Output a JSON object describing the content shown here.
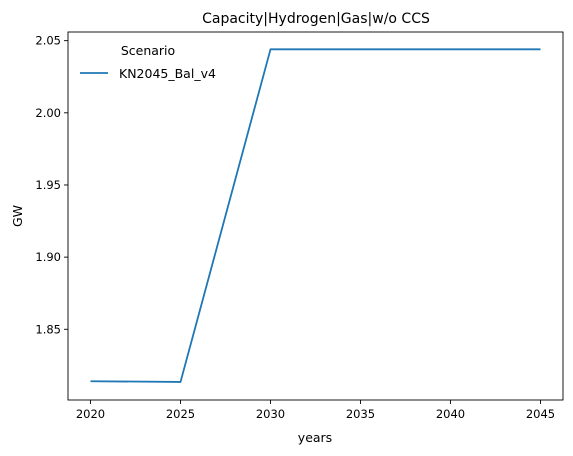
{
  "chart_data": {
    "type": "line",
    "title": "Capacity|Hydrogen|Gas|w/o CCS",
    "xlabel": "years",
    "ylabel": "GW",
    "x": [
      2020,
      2025,
      2030,
      2035,
      2040,
      2045
    ],
    "xticks": [
      "2020",
      "2025",
      "2030",
      "2035",
      "2040",
      "2045"
    ],
    "yticks": [
      "1.85",
      "1.90",
      "1.95",
      "2.00",
      "2.05"
    ],
    "xlim": [
      2018.75,
      2046.25
    ],
    "ylim": [
      1.801,
      2.056
    ],
    "legend": {
      "title": "Scenario",
      "placement": "upper-left"
    },
    "series": [
      {
        "name": "KN2045_Bal_v4",
        "color": "#1f77b4",
        "values": [
          1.814,
          1.8135,
          2.044,
          2.044,
          2.044,
          2.044
        ]
      }
    ],
    "grid": false
  }
}
